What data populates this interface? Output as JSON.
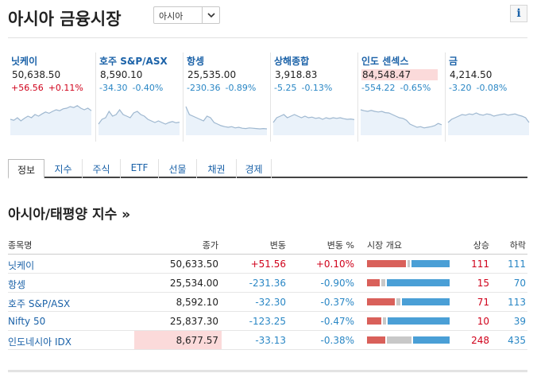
{
  "header": {
    "title": "아시아 금융시장",
    "region_select": "아시아",
    "info_label": "i"
  },
  "tiles": [
    {
      "name": "닛케이",
      "price": "50,638.50",
      "change": "+56.56",
      "pct": "+0.11%",
      "dir": "pos",
      "highlight": false,
      "spark": [
        0.45,
        0.42,
        0.5,
        0.4,
        0.48,
        0.55,
        0.5,
        0.6,
        0.55,
        0.62,
        0.68,
        0.64,
        0.7,
        0.75,
        0.72,
        0.78,
        0.8,
        0.85,
        0.82,
        0.88,
        0.8,
        0.75,
        0.8,
        0.72
      ]
    },
    {
      "name": "호주 S&P/ASX",
      "price": "8,590.10",
      "change": "-34.30",
      "pct": "-0.40%",
      "dir": "neg",
      "highlight": false,
      "spark": [
        0.3,
        0.45,
        0.5,
        0.7,
        0.55,
        0.6,
        0.75,
        0.6,
        0.55,
        0.5,
        0.65,
        0.7,
        0.6,
        0.55,
        0.45,
        0.4,
        0.35,
        0.4,
        0.35,
        0.3,
        0.35,
        0.38,
        0.34,
        0.36
      ]
    },
    {
      "name": "항셍",
      "price": "25,535.00",
      "change": "-230.36",
      "pct": "-0.89%",
      "dir": "neg",
      "highlight": false,
      "spark": [
        0.85,
        0.6,
        0.55,
        0.5,
        0.45,
        0.4,
        0.55,
        0.5,
        0.35,
        0.3,
        0.25,
        0.22,
        0.2,
        0.22,
        0.18,
        0.2,
        0.17,
        0.16,
        0.18,
        0.17,
        0.16,
        0.15,
        0.16,
        0.15
      ]
    },
    {
      "name": "상해종합",
      "price": "3,918.83",
      "change": "-5.25",
      "pct": "-0.13%",
      "dir": "neg",
      "highlight": false,
      "spark": [
        0.35,
        0.5,
        0.55,
        0.6,
        0.5,
        0.55,
        0.6,
        0.55,
        0.5,
        0.55,
        0.5,
        0.52,
        0.48,
        0.5,
        0.45,
        0.5,
        0.47,
        0.5,
        0.48,
        0.5,
        0.47,
        0.45,
        0.46,
        0.44
      ]
    },
    {
      "name": "인도 센섹스",
      "price": "84,548.47",
      "change": "-554.22",
      "pct": "-0.65%",
      "dir": "neg",
      "highlight": true,
      "spark": [
        0.75,
        0.72,
        0.7,
        0.73,
        0.7,
        0.68,
        0.7,
        0.66,
        0.65,
        0.6,
        0.55,
        0.5,
        0.48,
        0.42,
        0.3,
        0.25,
        0.2,
        0.22,
        0.18,
        0.2,
        0.22,
        0.25,
        0.32,
        0.28
      ]
    },
    {
      "name": "금",
      "price": "4,214.50",
      "change": "-3.20",
      "pct": "-0.08%",
      "dir": "neg",
      "highlight": false,
      "spark": [
        0.35,
        0.45,
        0.5,
        0.55,
        0.6,
        0.58,
        0.62,
        0.6,
        0.65,
        0.6,
        0.58,
        0.62,
        0.6,
        0.55,
        0.58,
        0.6,
        0.62,
        0.58,
        0.6,
        0.62,
        0.58,
        0.55,
        0.5,
        0.35
      ]
    }
  ],
  "tabs": [
    "정보",
    "지수",
    "주식",
    "ETF",
    "선물",
    "채권",
    "경제"
  ],
  "section": {
    "title": "아시아/태평양 지수 »"
  },
  "table": {
    "headers": {
      "name": "종목명",
      "last": "종가",
      "change": "변동",
      "pct": "변동 %",
      "overview": "시장 개요",
      "up": "상승",
      "down": "하락"
    },
    "rows": [
      {
        "name": "닛케이",
        "last": "50,633.50",
        "change": "+51.56",
        "pct": "+0.10%",
        "dir": "pos",
        "highlight": false,
        "up": "111",
        "down": "111",
        "up_frac": 0.47,
        "flat_frac": 0.03
      },
      {
        "name": "항셍",
        "last": "25,534.00",
        "change": "-231.36",
        "pct": "-0.90%",
        "dir": "neg",
        "highlight": false,
        "up": "15",
        "down": "70",
        "up_frac": 0.15,
        "flat_frac": 0.05
      },
      {
        "name": "호주 S&P/ASX",
        "last": "8,592.10",
        "change": "-32.30",
        "pct": "-0.37%",
        "dir": "neg",
        "highlight": false,
        "up": "71",
        "down": "113",
        "up_frac": 0.34,
        "flat_frac": 0.05
      },
      {
        "name": "Nifty 50",
        "last": "25,837.30",
        "change": "-123.25",
        "pct": "-0.47%",
        "dir": "neg",
        "highlight": false,
        "up": "10",
        "down": "39",
        "up_frac": 0.17,
        "flat_frac": 0.04
      },
      {
        "name": "인도네시아 IDX",
        "last": "8,677.57",
        "change": "-33.13",
        "pct": "-0.38%",
        "dir": "neg",
        "highlight": true,
        "up": "248",
        "down": "435",
        "up_frac": 0.22,
        "flat_frac": 0.3
      }
    ]
  },
  "colors": {
    "up": "#d0021b",
    "down": "#2a87c5",
    "bar_up": "#d9605a",
    "bar_flat": "#c8c8c8",
    "bar_down": "#4a9fd6",
    "link": "#1b62a8"
  }
}
